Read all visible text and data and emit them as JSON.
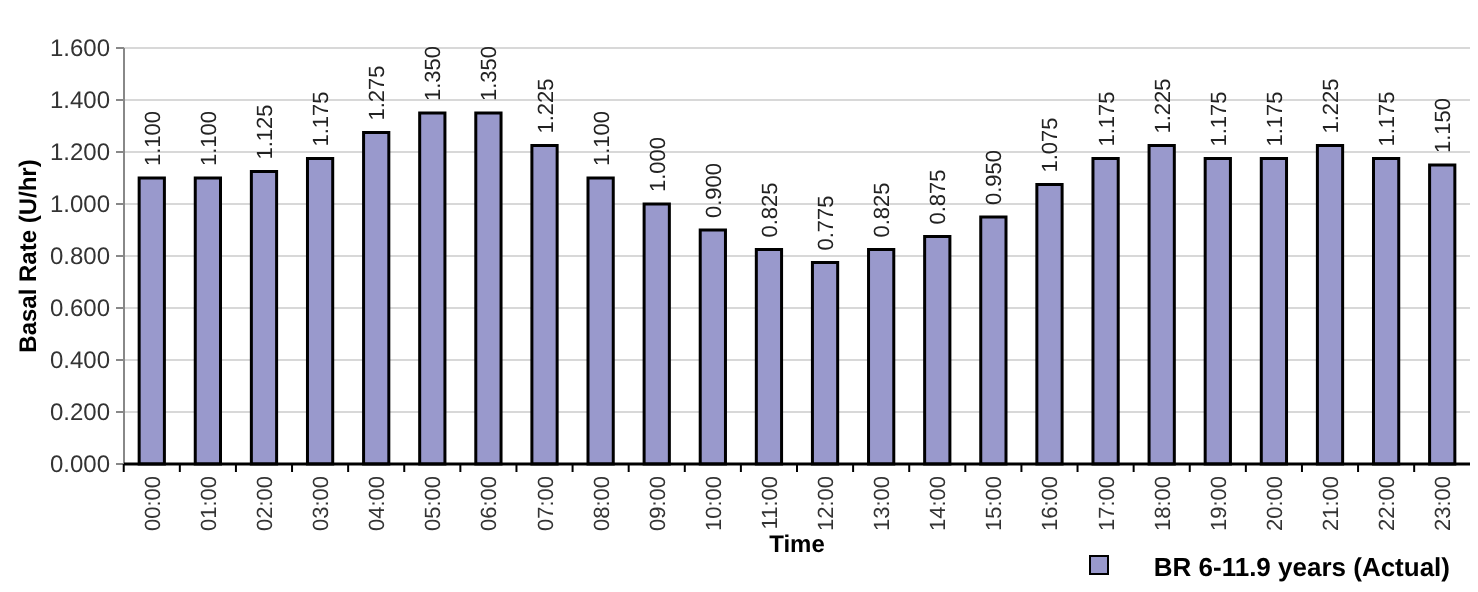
{
  "chart_data": {
    "type": "bar",
    "xlabel": "Time",
    "ylabel": "Basal Rate (U/hr)",
    "categories": [
      "00:00",
      "01:00",
      "02:00",
      "03:00",
      "04:00",
      "05:00",
      "06:00",
      "07:00",
      "08:00",
      "09:00",
      "10:00",
      "11:00",
      "12:00",
      "13:00",
      "14:00",
      "15:00",
      "16:00",
      "17:00",
      "18:00",
      "19:00",
      "20:00",
      "21:00",
      "22:00",
      "23:00"
    ],
    "series": [
      {
        "name": "BR 6-11.9 years (Actual)",
        "color": "#9999cc",
        "values": [
          1.1,
          1.1,
          1.125,
          1.175,
          1.275,
          1.35,
          1.35,
          1.225,
          1.1,
          1.0,
          0.9,
          0.825,
          0.775,
          0.825,
          0.875,
          0.95,
          1.075,
          1.175,
          1.225,
          1.175,
          1.175,
          1.225,
          1.175,
          1.15
        ],
        "value_labels": [
          "1.100",
          "1.100",
          "1.125",
          "1.175",
          "1.275",
          "1.350",
          "1.350",
          "1.225",
          "1.100",
          "1.000",
          "0.900",
          "0.825",
          "0.775",
          "0.825",
          "0.875",
          "0.950",
          "1.075",
          "1.175",
          "1.225",
          "1.175",
          "1.175",
          "1.225",
          "1.175",
          "1.150"
        ]
      }
    ],
    "ylim": [
      0,
      1.6
    ],
    "yticks": [
      {
        "value": 0,
        "label": "0.000"
      },
      {
        "value": 0.2,
        "label": "0.200"
      },
      {
        "value": 0.4,
        "label": "0.400"
      },
      {
        "value": 0.6,
        "label": "0.600"
      },
      {
        "value": 0.8,
        "label": "0.800"
      },
      {
        "value": 1.0,
        "label": "1.000"
      },
      {
        "value": 1.2,
        "label": "1.200"
      },
      {
        "value": 1.4,
        "label": "1.400"
      },
      {
        "value": 1.6,
        "label": "1.600"
      }
    ],
    "grid": "y",
    "legend": "bottom right"
  }
}
